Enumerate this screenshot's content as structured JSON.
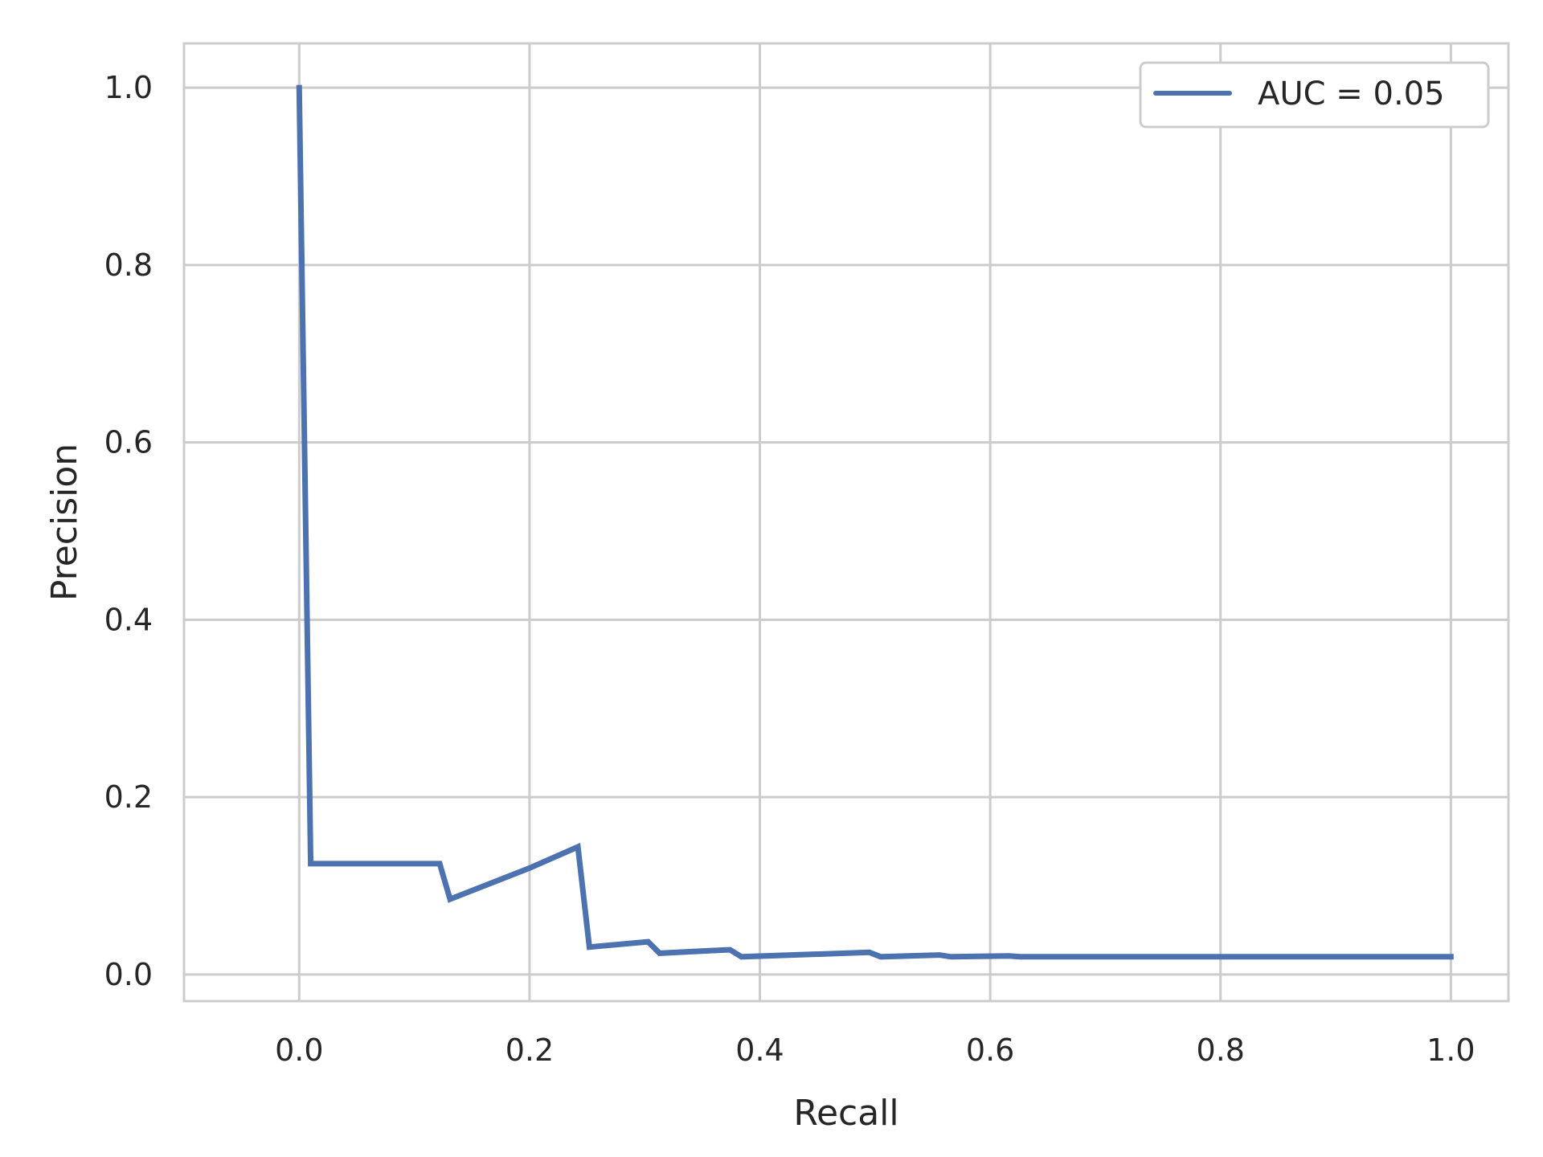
{
  "chart_data": {
    "type": "line",
    "title": "",
    "xlabel": "Recall",
    "ylabel": "Precision",
    "xlim": [
      -0.1,
      1.05
    ],
    "ylim": [
      -0.03,
      1.05
    ],
    "xticks": [
      0.0,
      0.2,
      0.4,
      0.6,
      0.8,
      1.0
    ],
    "yticks": [
      0.0,
      0.2,
      0.4,
      0.6,
      0.8,
      1.0
    ],
    "xtick_labels": [
      "0.0",
      "0.2",
      "0.4",
      "0.6",
      "0.8",
      "1.0"
    ],
    "ytick_labels": [
      "0.0",
      "0.2",
      "0.4",
      "0.6",
      "0.8",
      "1.0"
    ],
    "grid": true,
    "legend_position": "top-right",
    "series": [
      {
        "name": "AUC = 0.05",
        "color": "#4c72b0",
        "x": [
          0.0,
          0.01,
          0.122,
          0.131,
          0.2,
          0.242,
          0.252,
          0.303,
          0.313,
          0.374,
          0.384,
          0.495,
          0.505,
          0.556,
          0.566,
          0.616,
          0.626,
          1.0
        ],
        "y": [
          1.0,
          0.125,
          0.125,
          0.085,
          0.12,
          0.144,
          0.031,
          0.037,
          0.024,
          0.028,
          0.02,
          0.025,
          0.02,
          0.022,
          0.02,
          0.021,
          0.02,
          0.02
        ]
      }
    ]
  }
}
